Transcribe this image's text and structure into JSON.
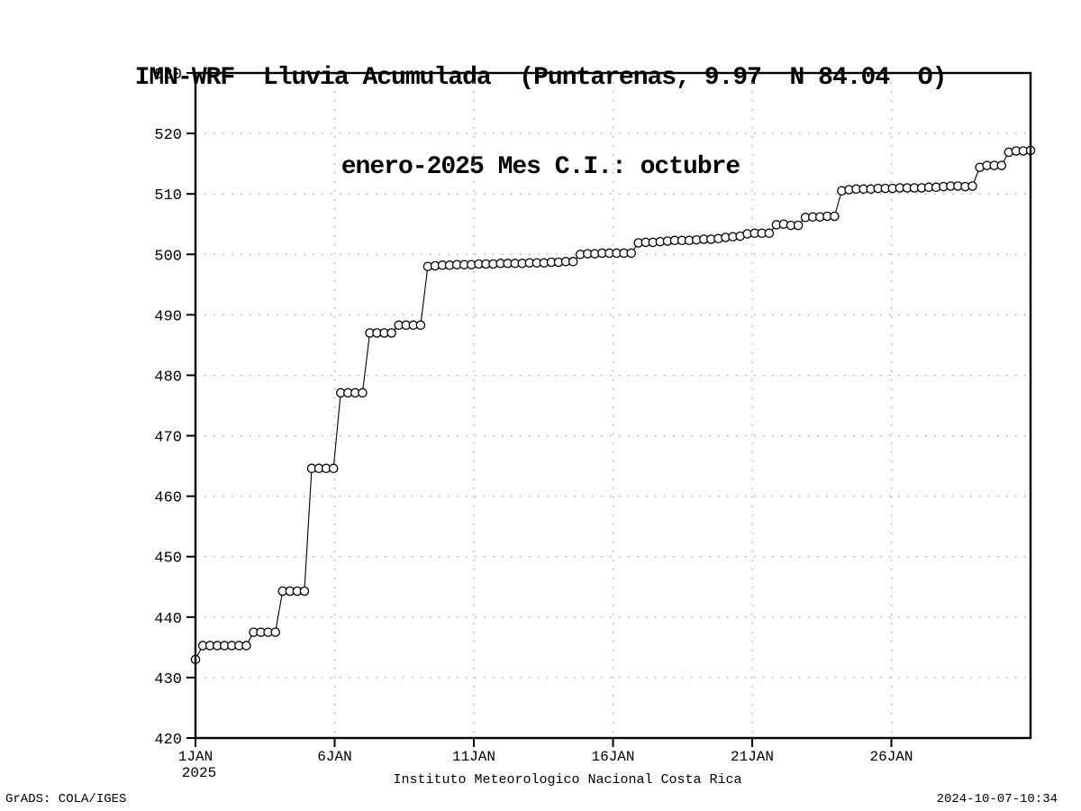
{
  "header": {
    "title_line1": "IMN-WRF  Lluvia Acumulada  (Puntarenas, 9.97  N 84.04  O)",
    "title_line2": "enero-2025 Mes C.I.: octubre"
  },
  "footer": {
    "left": "GrADS: COLA/IGES",
    "right": "2024-10-07-10:34",
    "xaxis_caption": "Instituto Meteorologico Nacional Costa Rica"
  },
  "chart_data": {
    "type": "line",
    "marker": "open-circle",
    "title": "IMN-WRF Lluvia Acumulada (Puntarenas, 9.97 N 84.04 O)",
    "subtitle": "enero-2025 Mes C.I.: octubre",
    "xlabel": "Instituto Meteorologico Nacional Costa Rica",
    "ylabel": "",
    "ylim": [
      420,
      530
    ],
    "y_tick_step": 10,
    "y_tick_labels": [
      "420",
      "430",
      "440",
      "450",
      "460",
      "470",
      "480",
      "490",
      "500",
      "510",
      "520",
      "530"
    ],
    "x_range_days": [
      1,
      31
    ],
    "x_tick_days": [
      1,
      6,
      11,
      16,
      21,
      26
    ],
    "x_tick_labels": [
      "1JAN",
      "6JAN",
      "11JAN",
      "16JAN",
      "21JAN",
      "26JAN"
    ],
    "x_year_label": "2025",
    "grid": "dotted",
    "legend_position": "none",
    "line_color": "#000000",
    "marker_fill": "#ffffff",
    "grid_color": "#a8a8a8",
    "values": [
      433.0,
      435.3,
      435.3,
      435.3,
      435.3,
      435.3,
      435.3,
      435.3,
      437.5,
      437.5,
      437.5,
      437.5,
      444.3,
      444.3,
      444.3,
      444.3,
      464.6,
      464.6,
      464.6,
      464.6,
      477.1,
      477.1,
      477.1,
      477.1,
      487.0,
      487.0,
      487.0,
      487.0,
      488.3,
      488.3,
      488.3,
      488.3,
      498.0,
      498.1,
      498.2,
      498.2,
      498.3,
      498.3,
      498.3,
      498.4,
      498.4,
      498.4,
      498.5,
      498.5,
      498.5,
      498.5,
      498.6,
      498.6,
      498.6,
      498.7,
      498.7,
      498.8,
      498.8,
      500.0,
      500.1,
      500.1,
      500.2,
      500.2,
      500.2,
      500.2,
      500.2,
      501.9,
      502.0,
      502.0,
      502.1,
      502.2,
      502.3,
      502.3,
      502.3,
      502.4,
      502.5,
      502.5,
      502.6,
      502.8,
      502.9,
      503.0,
      503.4,
      503.5,
      503.5,
      503.5,
      504.9,
      505.0,
      504.8,
      504.8,
      506.1,
      506.2,
      506.2,
      506.3,
      506.3,
      510.5,
      510.7,
      510.8,
      510.8,
      510.8,
      510.9,
      510.9,
      510.9,
      511.0,
      511.0,
      511.0,
      511.0,
      511.1,
      511.1,
      511.2,
      511.3,
      511.3,
      511.2,
      511.3,
      514.4,
      514.7,
      514.7,
      514.7,
      516.9,
      517.1,
      517.1,
      517.2
    ]
  }
}
